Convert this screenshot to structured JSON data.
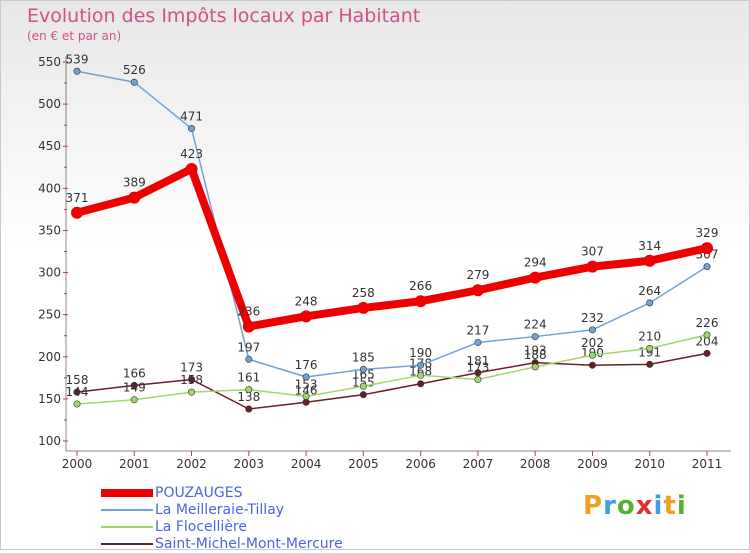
{
  "title": "Evolution des Impôts locaux par Habitant",
  "subtitle": "(en € et par an)",
  "brand": {
    "text": "Proxiti",
    "colors": [
      "#f0a020",
      "#3ca0e0",
      "#58b030",
      "#e03030",
      "#3ca0e0",
      "#f0a020",
      "#58b030"
    ]
  },
  "chart_data": {
    "type": "line",
    "x": [
      "2000",
      "2001",
      "2002",
      "2003",
      "2004",
      "2005",
      "2006",
      "2007",
      "2008",
      "2009",
      "2010",
      "2011"
    ],
    "ylim": [
      100,
      550
    ],
    "yticks": [
      "100",
      "150",
      "200",
      "250",
      "300",
      "350",
      "400",
      "450",
      "500",
      "550"
    ],
    "grid": false,
    "legend_position": "bottom-left",
    "series": [
      {
        "name": "Saint-Michel-Mont-Mercure",
        "color": "#6b1e26",
        "width": 1.5,
        "values": [
          158,
          166,
          173,
          138,
          146,
          155,
          168,
          181,
          193,
          190,
          191,
          204
        ],
        "labels": [
          "158",
          "166",
          "173",
          "138",
          "146",
          "155",
          "168",
          "181",
          "193",
          "190",
          "191",
          "204"
        ]
      },
      {
        "name": "La Flocellière",
        "color": "#9ed86a",
        "width": 1.5,
        "values": [
          144,
          149,
          158,
          161,
          153,
          165,
          178,
          173,
          188,
          202,
          210,
          226
        ],
        "labels": [
          "144",
          "149",
          "158",
          "161",
          "153",
          "165",
          "178",
          "173",
          "188",
          "202",
          "210",
          "226"
        ]
      },
      {
        "name": "La Meilleraie-Tillay",
        "color": "#6fa3d6",
        "width": 1.5,
        "values": [
          539,
          526,
          471,
          197,
          176,
          185,
          190,
          217,
          224,
          232,
          264,
          307
        ],
        "labels": [
          "539",
          "526",
          "471",
          "197",
          "176",
          "185",
          "190",
          "217",
          "224",
          "232",
          "264",
          "307"
        ]
      },
      {
        "name": "POUZAUGES",
        "color": "#ee0000",
        "width": 8,
        "values": [
          371,
          389,
          423,
          236,
          248,
          258,
          266,
          279,
          294,
          307,
          314,
          329
        ],
        "labels": [
          "371",
          "389",
          "423",
          "236",
          "248",
          "258",
          "266",
          "279",
          "294",
          "307",
          "314",
          "329"
        ]
      }
    ],
    "legend": [
      {
        "name": "POUZAUGES",
        "color": "#ee0000",
        "width": 8
      },
      {
        "name": "La Meilleraie-Tillay",
        "color": "#6fa3d6",
        "width": 2
      },
      {
        "name": "La Flocellière",
        "color": "#9ed86a",
        "width": 2
      },
      {
        "name": "Saint-Michel-Mont-Mercure",
        "color": "#6b1e26",
        "width": 2
      }
    ]
  }
}
